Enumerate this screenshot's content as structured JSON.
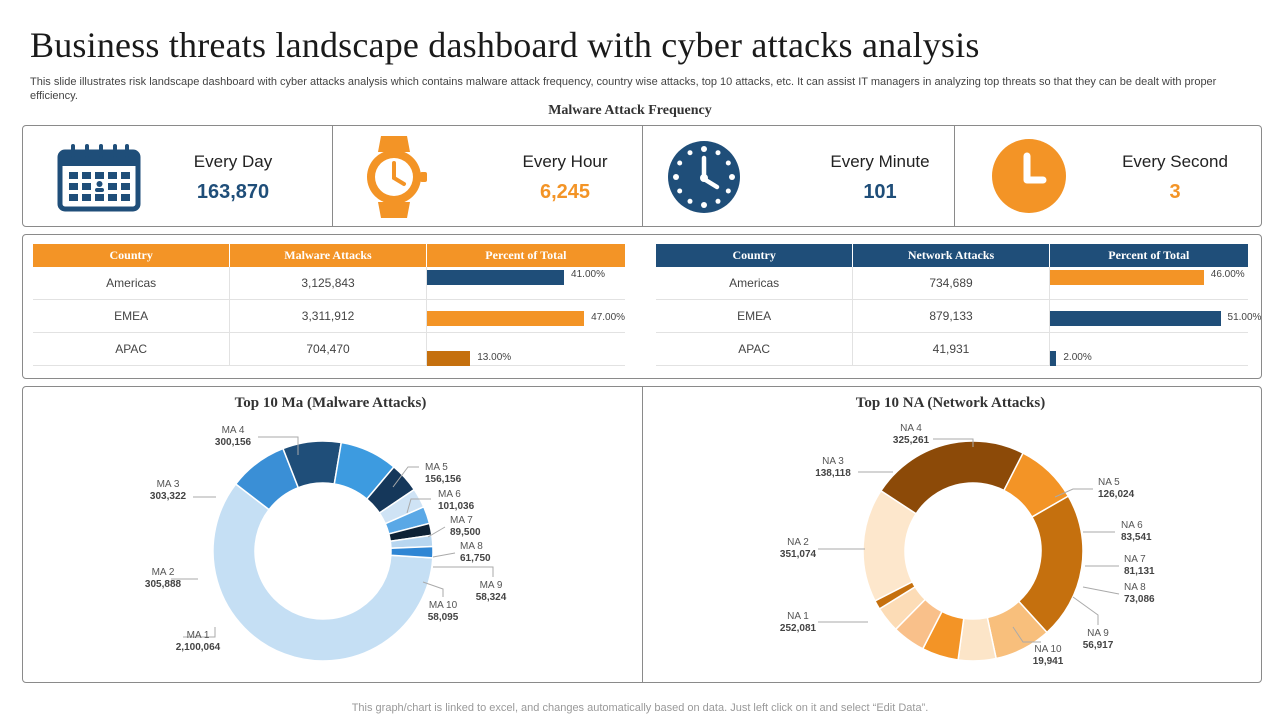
{
  "page": {
    "title": "Business threats landscape dashboard with cyber attacks analysis",
    "subtitle": "This slide illustrates risk landscape dashboard with cyber attacks analysis which contains malware attack frequency, country wise attacks, top 10 attacks, etc. It can assist IT managers in analyzing top threats so that they can be dealt with proper efficiency.",
    "section_title": "Malware Attack Frequency",
    "footer": "This graph/chart is linked to excel,  and changes automatically based on data. Just left click on it and select “Edit Data”."
  },
  "colors": {
    "navy": "#1f4e79",
    "orange": "#f39426",
    "dark_orange": "#c5700e"
  },
  "kpis": [
    {
      "label": "Every Day",
      "value": "163,870",
      "icon": "calendar-icon",
      "color": "#1f4e79"
    },
    {
      "label": "Every Hour",
      "value": "6,245",
      "icon": "wristwatch-icon",
      "color": "#f39426"
    },
    {
      "label": "Every Minute",
      "value": "101",
      "icon": "clock-icon",
      "color": "#1f4e79"
    },
    {
      "label": "Every Second",
      "value": "3",
      "icon": "clock-circle-icon",
      "color": "#f39426"
    }
  ],
  "malware_table": {
    "headers": [
      "Country",
      "Malware  Attacks",
      "Percent of Total"
    ],
    "rows": [
      {
        "country": "Americas",
        "attacks": "3,125,843",
        "percent_label": "41.00%",
        "percent": 41,
        "color": "#1f4e79"
      },
      {
        "country": "EMEA",
        "attacks": "3,311,912",
        "percent_label": "47.00%",
        "percent": 47,
        "color": "#f39426"
      },
      {
        "country": "APAC",
        "attacks": "704,470",
        "percent_label": "13.00%",
        "percent": 13,
        "color": "#c5700e"
      }
    ]
  },
  "network_table": {
    "headers": [
      "Country",
      "Network  Attacks",
      "Percent of Total"
    ],
    "rows": [
      {
        "country": "Americas",
        "attacks": "734,689",
        "percent_label": "46.00%",
        "percent": 46,
        "color": "#f39426"
      },
      {
        "country": "EMEA",
        "attacks": "879,133",
        "percent_label": "51.00%",
        "percent": 51,
        "color": "#1f4e79"
      },
      {
        "country": "APAC",
        "attacks": "41,931",
        "percent_label": "2.00%",
        "percent": 2,
        "color": "#1f4e79"
      }
    ]
  },
  "chart_data": [
    {
      "type": "pie",
      "title": "Top 10 Ma (Malware Attacks)",
      "slices": [
        {
          "name": "MA 1",
          "value": 2100064,
          "label": "2,100,064",
          "color": "#c5dff4"
        },
        {
          "name": "MA 2",
          "value": 305888,
          "label": "305,888",
          "color": "#3a8fd6"
        },
        {
          "name": "MA 3",
          "value": 303322,
          "label": "303,322",
          "color": "#1f4e79"
        },
        {
          "name": "MA 4",
          "value": 300156,
          "label": "300,156",
          "color": "#3d9be0"
        },
        {
          "name": "MA 5",
          "value": 156156,
          "label": "156,156",
          "color": "#15375a"
        },
        {
          "name": "MA 6",
          "value": 101036,
          "label": "101,036",
          "color": "#cfe3f5"
        },
        {
          "name": "MA 7",
          "value": 89500,
          "label": "89,500",
          "color": "#5aa8e6"
        },
        {
          "name": "MA 8",
          "value": 61750,
          "label": "61,750",
          "color": "#0e2236"
        },
        {
          "name": "MA 9",
          "value": 58324,
          "label": "58,324",
          "color": "#b7d6f0"
        },
        {
          "name": "MA 10",
          "value": 58095,
          "label": "58,095",
          "color": "#2f86d4"
        }
      ]
    },
    {
      "type": "pie",
      "title": "Top 10 NA (Network Attacks)",
      "slices": [
        {
          "name": "NA 1",
          "value": 252081,
          "label": "252,081",
          "color": "#fde7cc"
        },
        {
          "name": "NA 2",
          "value": 351074,
          "label": "351,074",
          "color": "#8c4a08"
        },
        {
          "name": "NA 3",
          "value": 138118,
          "label": "138,118",
          "color": "#f39426"
        },
        {
          "name": "NA 4",
          "value": 325261,
          "label": "325,261",
          "color": "#c5700e"
        },
        {
          "name": "NA 5",
          "value": 126024,
          "label": "126,024",
          "color": "#f8bf7c"
        },
        {
          "name": "NA 6",
          "value": 83541,
          "label": "83,541",
          "color": "#fce5c8"
        },
        {
          "name": "NA 7",
          "value": 81131,
          "label": "81,131",
          "color": "#f39426"
        },
        {
          "name": "NA 8",
          "value": 73086,
          "label": "73,086",
          "color": "#f9c08a"
        },
        {
          "name": "NA 9",
          "value": 56917,
          "label": "56,917",
          "color": "#fcdcb6"
        },
        {
          "name": "NA 10",
          "value": 19941,
          "label": "19,941",
          "color": "#c5700e"
        }
      ]
    }
  ]
}
